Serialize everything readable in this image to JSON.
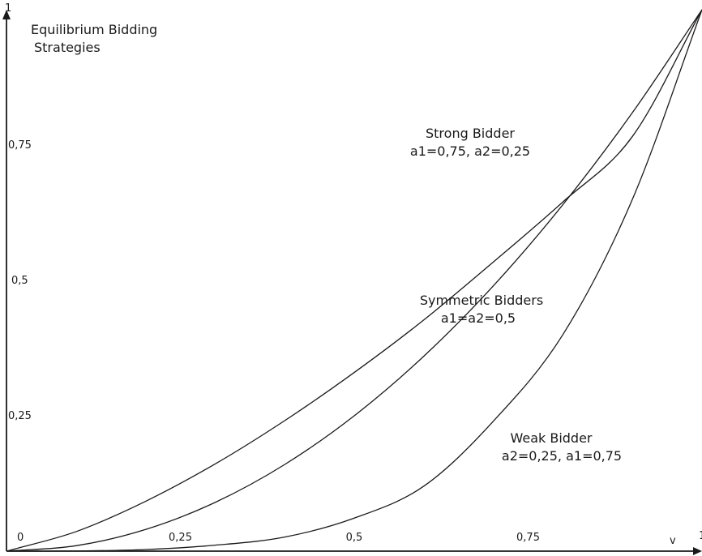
{
  "chart_data": {
    "type": "line",
    "title": "Equilibrium Bidding\nStrategies",
    "xlabel": "v",
    "ylabel": "",
    "xlim": [
      0,
      1
    ],
    "ylim": [
      0,
      1
    ],
    "x_ticks": [
      {
        "value": 0,
        "label": "0"
      },
      {
        "value": 0.25,
        "label": "0,25"
      },
      {
        "value": 0.5,
        "label": "0,5"
      },
      {
        "value": 0.75,
        "label": "0,75"
      },
      {
        "value": 1,
        "label": "1"
      }
    ],
    "y_ticks": [
      {
        "value": 0.25,
        "label": "0,25"
      },
      {
        "value": 0.5,
        "label": "0,5"
      },
      {
        "value": 0.75,
        "label": "0,75"
      },
      {
        "value": 1,
        "label": "1"
      }
    ],
    "grid": false,
    "legend": "none",
    "series": [
      {
        "key": "strong",
        "annotation": [
          "Strong Bidder",
          "a1=0,75, a2=0,25"
        ],
        "x": [
          0,
          0.1,
          0.2,
          0.3,
          0.4,
          0.5,
          0.6,
          0.7,
          0.8,
          0.9,
          1.0
        ],
        "y": [
          0,
          0.036,
          0.092,
          0.161,
          0.241,
          0.33,
          0.427,
          0.534,
          0.645,
          0.766,
          1.0
        ]
      },
      {
        "key": "symmetric",
        "annotation": [
          "Symmetric Bidders",
          "a1=a2=0,5"
        ],
        "x": [
          0,
          0.1,
          0.2,
          0.3,
          0.4,
          0.5,
          0.6,
          0.7,
          0.8,
          0.9,
          1.0
        ],
        "y": [
          0,
          0.01,
          0.04,
          0.09,
          0.16,
          0.25,
          0.36,
          0.49,
          0.64,
          0.81,
          1.0
        ]
      },
      {
        "key": "weak",
        "annotation": [
          "Weak Bidder",
          "a2=0,25, a1=0,75"
        ],
        "x": [
          0,
          0.1,
          0.2,
          0.3,
          0.4,
          0.5,
          0.6,
          0.7,
          0.8,
          0.9,
          1.0
        ],
        "y": [
          0,
          0.0003,
          0.003,
          0.011,
          0.026,
          0.061,
          0.12,
          0.24,
          0.4,
          0.65,
          1.0
        ]
      }
    ]
  }
}
